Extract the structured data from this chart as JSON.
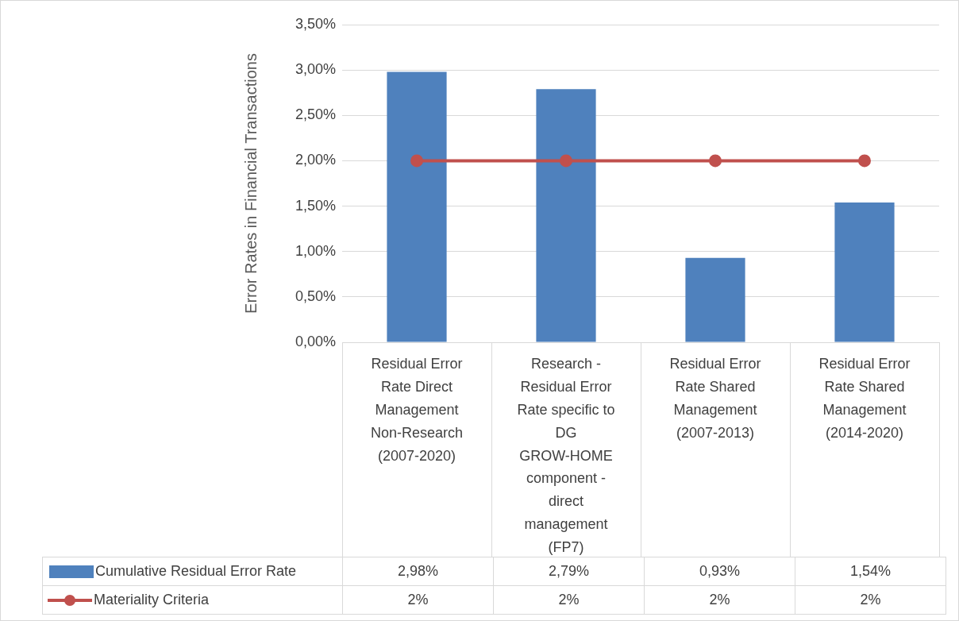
{
  "chart_data": {
    "type": "bar",
    "ylabel": "Error Rates in Financial Transactions",
    "categories": [
      "Residual Error Rate Direct Management Non-Research (2007-2020)",
      "Research - Residual Error Rate specific to DG GROW-HOME component - direct management (FP7)",
      "Residual Error Rate Shared Management (2007-2013)",
      "Residual Error Rate Shared Management (2014-2020)"
    ],
    "series": [
      {
        "name": "Cumulative Residual Error Rate",
        "color": "#4f81bd",
        "values": [
          2.98,
          2.79,
          0.93,
          1.54
        ],
        "value_labels": [
          "2,98%",
          "2,79%",
          "0,93%",
          "1,54%"
        ]
      },
      {
        "name": "Materiality Criteria",
        "type": "line",
        "color": "#c0504d",
        "values": [
          2,
          2,
          2,
          2
        ],
        "value_labels": [
          "2%",
          "2%",
          "2%",
          "2%"
        ]
      }
    ],
    "ylim": [
      0,
      3.5
    ],
    "yticks": [
      {
        "value": 0,
        "label": "0,00%"
      },
      {
        "value": 0.5,
        "label": "0,50%"
      },
      {
        "value": 1,
        "label": "1,00%"
      },
      {
        "value": 1.5,
        "label": "1,50%"
      },
      {
        "value": 2,
        "label": "2,00%"
      },
      {
        "value": 2.5,
        "label": "2,50%"
      },
      {
        "value": 3,
        "label": "3,00%"
      },
      {
        "value": 3.5,
        "label": "3,50%"
      }
    ],
    "grid": "y",
    "legend": "bottom",
    "marker": "circle"
  }
}
